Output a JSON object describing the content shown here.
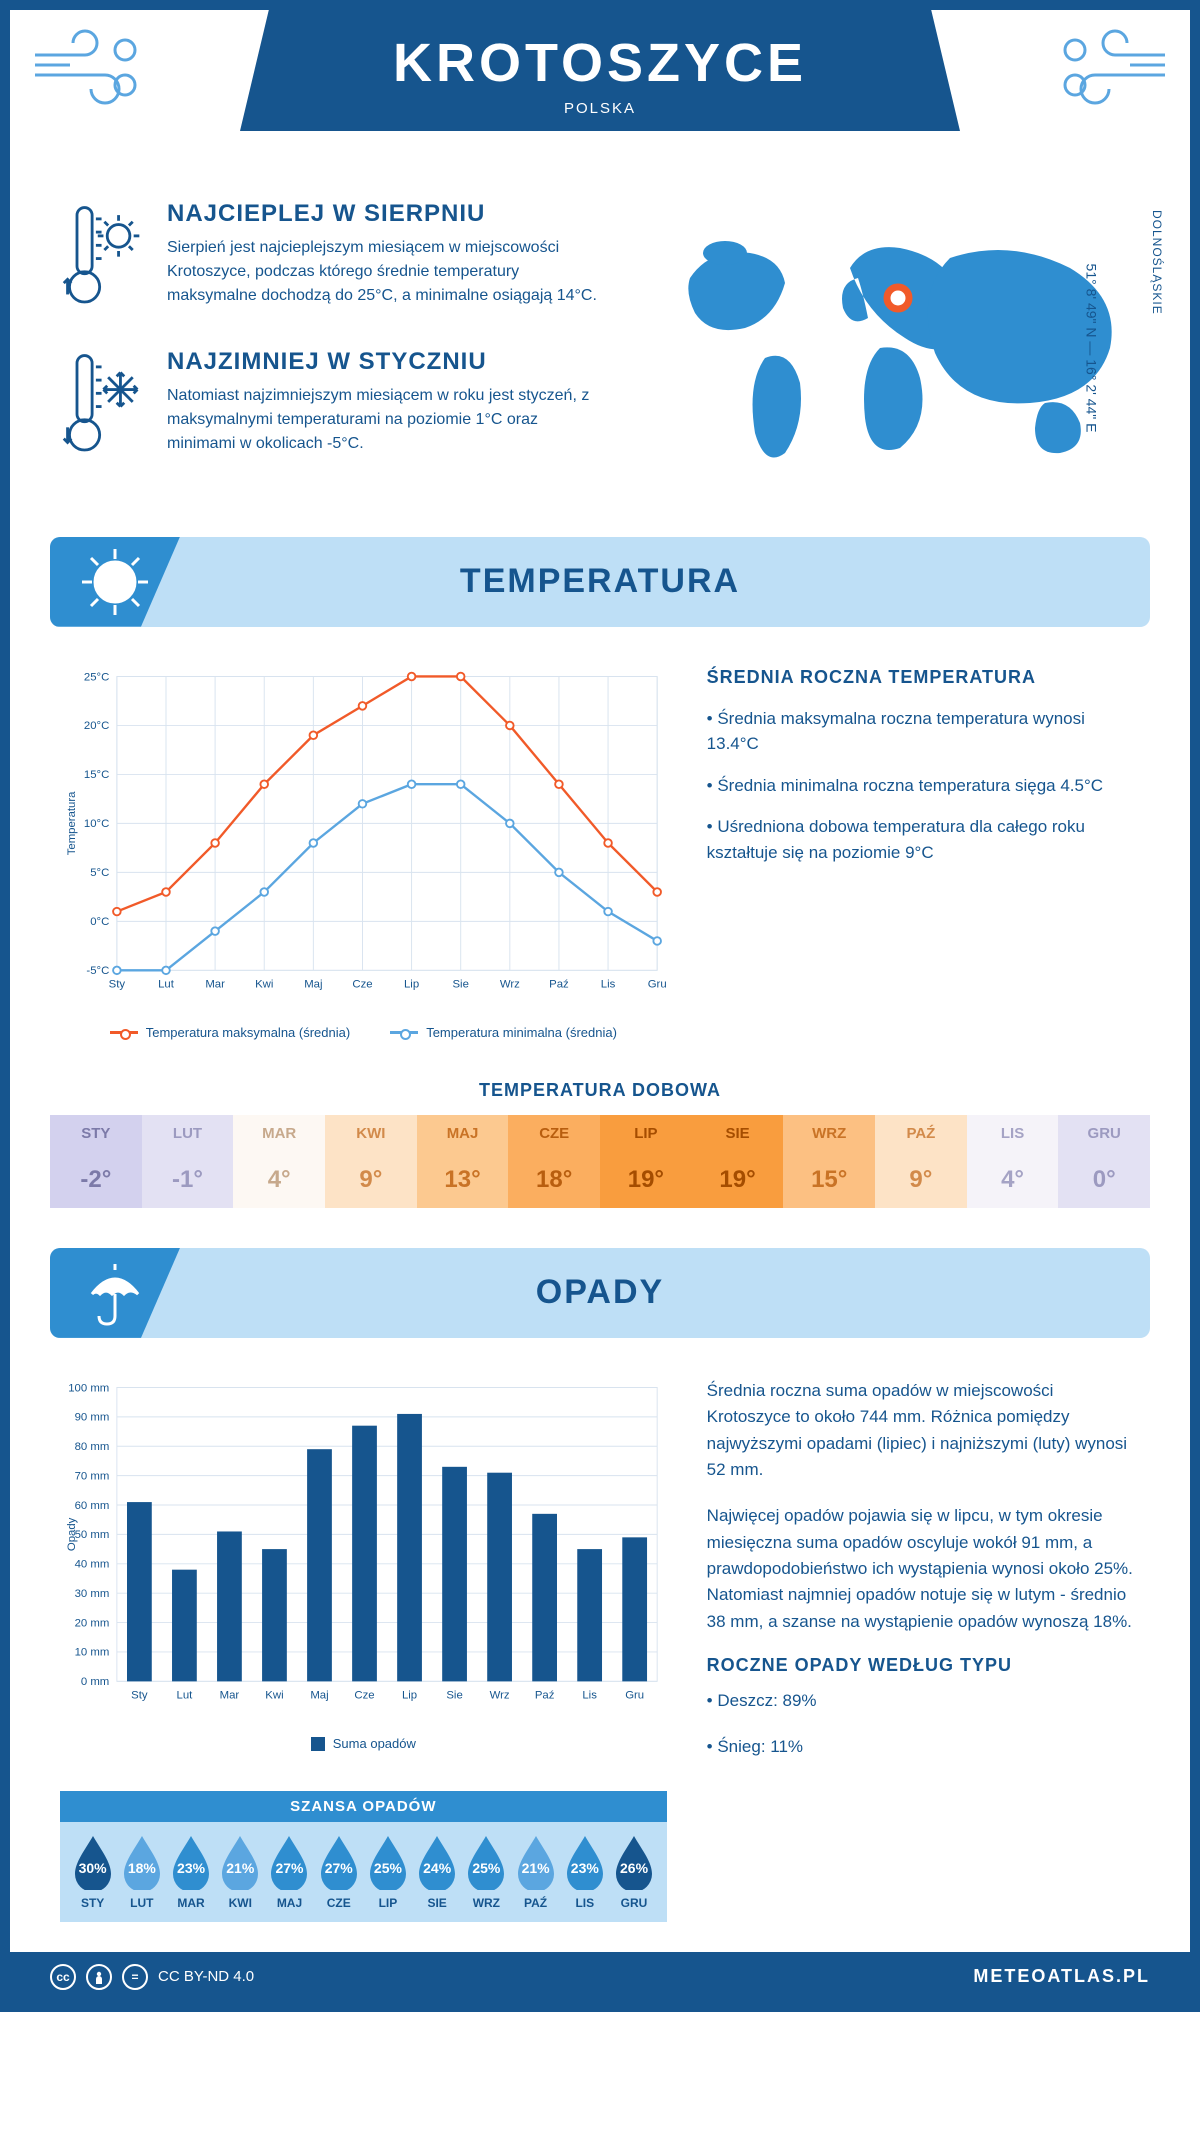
{
  "header": {
    "city": "KROTOSZYCE",
    "country": "POLSKA"
  },
  "coords": "51° 8' 49\" N — 16° 2' 44\" E",
  "region": "DOLNOŚLĄSKIE",
  "fact_warm": {
    "title": "NAJCIEPLEJ W SIERPNIU",
    "text": "Sierpień jest najcieplejszym miesiącem w miejscowości Krotoszyce, podczas którego średnie temperatury maksymalne dochodzą do 25°C, a minimalne osiągają 14°C."
  },
  "fact_cold": {
    "title": "NAJZIMNIEJ W STYCZNIU",
    "text": "Natomiast najzimniejszym miesiącem w roku jest styczeń, z maksymalnymi temperaturami na poziomie 1°C oraz minimami w okolicach -5°C."
  },
  "sections": {
    "temperature": "TEMPERATURA",
    "precip": "OPADY"
  },
  "months": [
    "Sty",
    "Lut",
    "Mar",
    "Kwi",
    "Maj",
    "Cze",
    "Lip",
    "Sie",
    "Wrz",
    "Paź",
    "Lis",
    "Gru"
  ],
  "months_upper": [
    "STY",
    "LUT",
    "MAR",
    "KWI",
    "MAJ",
    "CZE",
    "LIP",
    "SIE",
    "WRZ",
    "PAŹ",
    "LIS",
    "GRU"
  ],
  "temp_chart": {
    "type": "line",
    "ylabel": "Temperatura",
    "ylim": [
      -5,
      25
    ],
    "ytick_step": 5,
    "ytick_labels": [
      "-5°C",
      "0°C",
      "5°C",
      "10°C",
      "15°C",
      "20°C",
      "25°C"
    ],
    "grid_color": "#d8e3ef",
    "background": "#ffffff",
    "series": {
      "max": {
        "label": "Temperatura maksymalna (średnia)",
        "color": "#f15a29",
        "values": [
          1,
          3,
          8,
          14,
          19,
          22,
          25,
          25,
          20,
          14,
          8,
          3
        ]
      },
      "min": {
        "label": "Temperatura minimalna (średnia)",
        "color": "#5ba6e0",
        "values": [
          -5,
          -5,
          -1,
          3,
          8,
          12,
          14,
          14,
          10,
          5,
          1,
          -2
        ]
      }
    }
  },
  "temp_info": {
    "title": "ŚREDNIA ROCZNA TEMPERATURA",
    "bullets": [
      "• Średnia maksymalna roczna temperatura wynosi 13.4°C",
      "• Średnia minimalna roczna temperatura sięga 4.5°C",
      "• Uśredniona dobowa temperatura dla całego roku kształtuje się na poziomie 9°C"
    ]
  },
  "daily": {
    "title": "TEMPERATURA DOBOWA",
    "values": [
      "-2°",
      "-1°",
      "4°",
      "9°",
      "13°",
      "18°",
      "19°",
      "19°",
      "15°",
      "9°",
      "4°",
      "0°"
    ],
    "bg_colors": [
      "#d3d1ee",
      "#e3e1f3",
      "#fdf8f3",
      "#fde3c6",
      "#fcc990",
      "#fbae5f",
      "#f99d3e",
      "#f99d3e",
      "#fcc082",
      "#fde3c6",
      "#f5f3f9",
      "#e3e1f3"
    ],
    "text_colors": [
      "#7c7aa8",
      "#9c9ac0",
      "#c7a98c",
      "#d28a4a",
      "#c97326",
      "#b85e0f",
      "#a54d00",
      "#a54d00",
      "#c97326",
      "#d28a4a",
      "#a5a3c5",
      "#9c9ac0"
    ]
  },
  "precip_chart": {
    "type": "bar",
    "ylabel": "Opady",
    "ylim": [
      0,
      100
    ],
    "ytick_step": 10,
    "ytick_labels": [
      "0 mm",
      "10 mm",
      "20 mm",
      "30 mm",
      "40 mm",
      "50 mm",
      "60 mm",
      "70 mm",
      "80 mm",
      "90 mm",
      "100 mm"
    ],
    "bar_color": "#16558e",
    "grid_color": "#d8e3ef",
    "values": [
      61,
      38,
      51,
      45,
      79,
      87,
      91,
      73,
      71,
      57,
      45,
      49
    ],
    "legend": "Suma opadów"
  },
  "precip_info": {
    "p1": "Średnia roczna suma opadów w miejscowości Krotoszyce to około 744 mm. Różnica pomiędzy najwyższymi opadami (lipiec) i najniższymi (luty) wynosi 52 mm.",
    "p2": "Najwięcej opadów pojawia się w lipcu, w tym okresie miesięczna suma opadów oscyluje wokół 91 mm, a prawdopodobieństwo ich wystąpienia wynosi około 25%. Natomiast najmniej opadów notuje się w lutym - średnio 38 mm, a szanse na wystąpienie opadów wynoszą 18%.",
    "type_title": "ROCZNE OPADY WEDŁUG TYPU",
    "type_bullets": [
      "• Deszcz: 89%",
      "• Śnieg: 11%"
    ]
  },
  "chance": {
    "title": "SZANSA OPADÓW",
    "values": [
      "30%",
      "18%",
      "23%",
      "21%",
      "27%",
      "27%",
      "25%",
      "24%",
      "25%",
      "21%",
      "23%",
      "26%"
    ],
    "colors": [
      "#16558e",
      "#5ba6e0",
      "#2f8ed0",
      "#5ba6e0",
      "#2f8ed0",
      "#2f8ed0",
      "#2f8ed0",
      "#2f8ed0",
      "#2f8ed0",
      "#5ba6e0",
      "#2f8ed0",
      "#16558e"
    ]
  },
  "footer": {
    "license": "CC BY-ND 4.0",
    "site": "METEOATLAS.PL"
  }
}
